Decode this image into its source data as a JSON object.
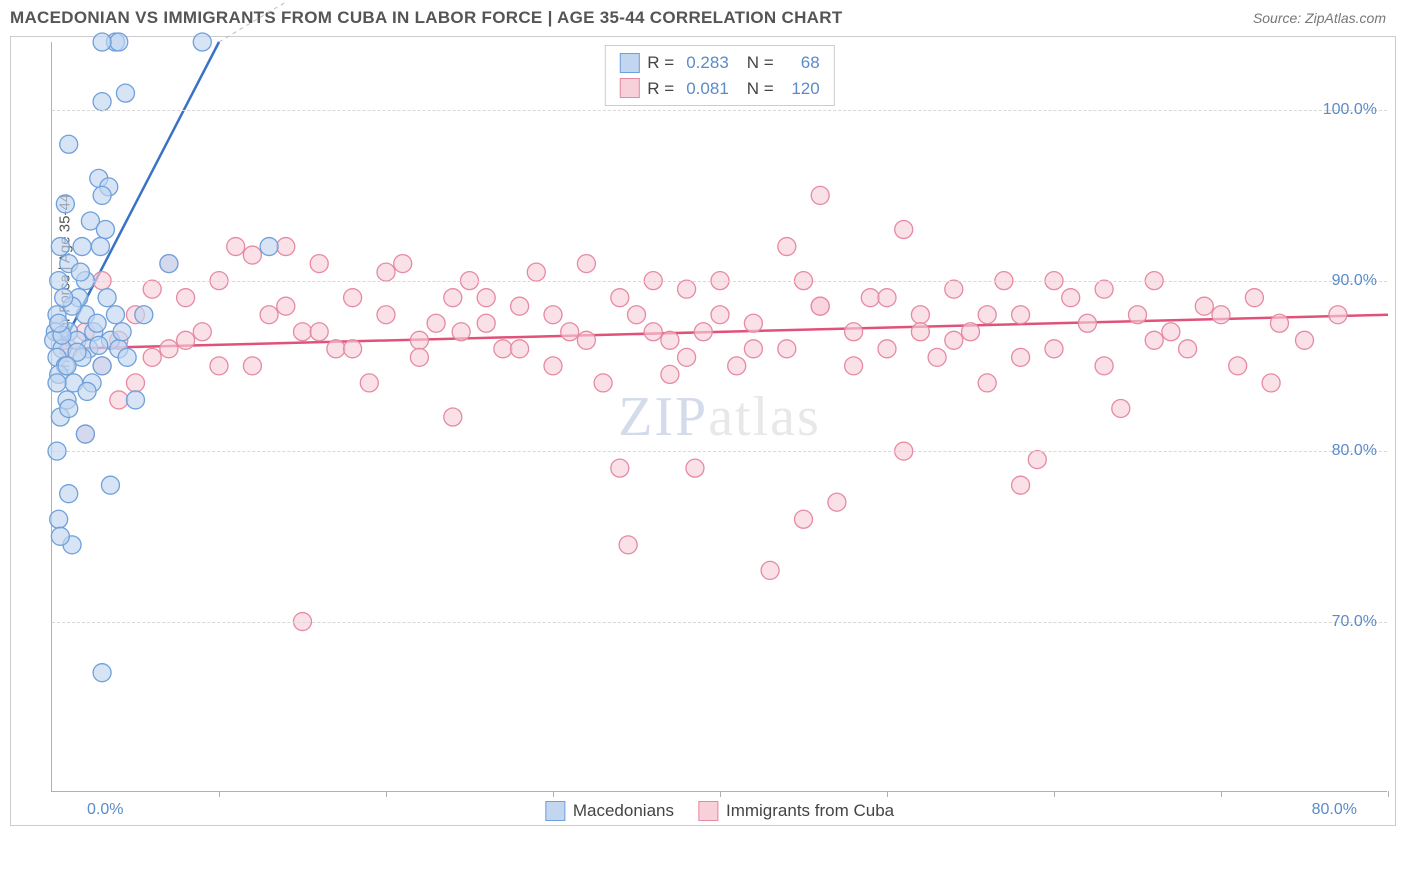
{
  "header": {
    "title": "MACEDONIAN VS IMMIGRANTS FROM CUBA IN LABOR FORCE | AGE 35-44 CORRELATION CHART",
    "source": "Source: ZipAtlas.com"
  },
  "chart": {
    "type": "scatter",
    "y_axis_label": "In Labor Force | Age 35-44",
    "x_origin_label": "0.0%",
    "x_end_label": "80.0%",
    "xlim": [
      0,
      80
    ],
    "ylim": [
      60,
      104
    ],
    "y_ticks": [
      70,
      80,
      90,
      100
    ],
    "y_tick_labels": [
      "70.0%",
      "80.0%",
      "90.0%",
      "100.0%"
    ],
    "x_ticks": [
      10,
      20,
      30,
      40,
      50,
      60,
      70,
      80
    ],
    "grid_color": "#d8d8d8",
    "background_color": "#ffffff",
    "plot_border_color": "#b0b0b0",
    "series": [
      {
        "name": "Macedonians",
        "marker_fill": "#c2d6ef",
        "marker_stroke": "#6ea0db",
        "marker_radius": 9,
        "trend_line_color": "#3a72c4",
        "trend_line_width": 2.5,
        "trend_start": [
          0.5,
          86
        ],
        "trend_end": [
          10,
          104
        ],
        "extrapolate_color": "#bbbbbb",
        "extrapolate_dash": "4,4",
        "extrapolate_end": [
          19,
          104
        ],
        "points": [
          [
            3.8,
            104
          ],
          [
            4.0,
            104
          ],
          [
            3.0,
            104
          ],
          [
            9.0,
            104
          ],
          [
            3.0,
            100.5
          ],
          [
            4.4,
            101
          ],
          [
            1.0,
            98
          ],
          [
            2.8,
            96
          ],
          [
            3.4,
            95.5
          ],
          [
            0.8,
            94.5
          ],
          [
            3.0,
            95
          ],
          [
            2.3,
            93.5
          ],
          [
            3.2,
            93
          ],
          [
            0.5,
            92
          ],
          [
            1.8,
            92
          ],
          [
            2.9,
            92
          ],
          [
            1.0,
            91
          ],
          [
            7.0,
            91
          ],
          [
            0.4,
            90
          ],
          [
            1.6,
            89
          ],
          [
            0.3,
            88
          ],
          [
            2.0,
            88
          ],
          [
            13.0,
            92
          ],
          [
            0.2,
            87
          ],
          [
            1.0,
            87
          ],
          [
            2.5,
            87
          ],
          [
            0.1,
            86.5
          ],
          [
            1.5,
            86.5
          ],
          [
            3.5,
            86.5
          ],
          [
            0.6,
            86
          ],
          [
            2.2,
            86
          ],
          [
            4.0,
            86
          ],
          [
            0.3,
            85.5
          ],
          [
            1.8,
            85.5
          ],
          [
            0.8,
            85
          ],
          [
            3.0,
            85
          ],
          [
            0.4,
            84.5
          ],
          [
            2.4,
            84
          ],
          [
            0.9,
            83
          ],
          [
            5.0,
            83
          ],
          [
            0.5,
            82
          ],
          [
            2.0,
            81
          ],
          [
            0.3,
            80
          ],
          [
            3.5,
            78
          ],
          [
            1.0,
            77.5
          ],
          [
            0.4,
            76
          ],
          [
            1.2,
            74.5
          ],
          [
            0.5,
            75
          ],
          [
            3.0,
            67
          ],
          [
            1.5,
            85.8
          ],
          [
            2.8,
            86.2
          ],
          [
            4.2,
            87
          ],
          [
            1.2,
            88.5
          ],
          [
            0.7,
            89
          ],
          [
            3.8,
            88
          ],
          [
            2.0,
            90
          ],
          [
            0.9,
            85
          ],
          [
            4.5,
            85.5
          ],
          [
            1.3,
            84
          ],
          [
            0.6,
            86.8
          ],
          [
            2.7,
            87.5
          ],
          [
            3.3,
            89
          ],
          [
            1.7,
            90.5
          ],
          [
            5.5,
            88
          ],
          [
            0.4,
            87.5
          ],
          [
            2.1,
            83.5
          ],
          [
            1.0,
            82.5
          ],
          [
            0.3,
            84
          ]
        ]
      },
      {
        "name": "Immigrants from Cuba",
        "marker_fill": "#f7d0da",
        "marker_stroke": "#e68aa3",
        "marker_radius": 9,
        "trend_line_color": "#e0527a",
        "trend_line_width": 2.5,
        "trend_start": [
          0.5,
          86
        ],
        "trend_end": [
          80,
          88
        ],
        "points": [
          [
            1,
            86
          ],
          [
            2,
            87
          ],
          [
            3,
            85
          ],
          [
            4,
            86.5
          ],
          [
            5,
            88
          ],
          [
            6,
            85.5
          ],
          [
            7,
            86
          ],
          [
            8,
            89
          ],
          [
            9,
            87
          ],
          [
            10,
            85
          ],
          [
            3,
            90
          ],
          [
            5,
            84
          ],
          [
            7,
            91
          ],
          [
            11,
            92
          ],
          [
            12,
            91.5
          ],
          [
            13,
            88
          ],
          [
            14,
            92
          ],
          [
            15,
            87
          ],
          [
            16,
            91
          ],
          [
            17,
            86
          ],
          [
            18,
            89
          ],
          [
            19,
            84
          ],
          [
            20,
            88
          ],
          [
            21,
            91
          ],
          [
            22,
            86.5
          ],
          [
            23,
            87.5
          ],
          [
            24,
            82
          ],
          [
            25,
            90
          ],
          [
            26,
            89
          ],
          [
            27,
            86
          ],
          [
            28,
            88.5
          ],
          [
            29,
            90.5
          ],
          [
            30,
            85
          ],
          [
            31,
            87
          ],
          [
            32,
            91
          ],
          [
            33,
            84
          ],
          [
            15,
            70
          ],
          [
            34,
            79
          ],
          [
            35,
            88
          ],
          [
            36,
            90
          ],
          [
            37,
            86.5
          ],
          [
            38,
            89.5
          ],
          [
            34.5,
            74.5
          ],
          [
            38.5,
            79
          ],
          [
            37,
            84.5
          ],
          [
            39,
            87
          ],
          [
            40,
            88
          ],
          [
            41,
            85
          ],
          [
            42,
            86
          ],
          [
            43,
            73
          ],
          [
            44,
            92
          ],
          [
            46,
            95
          ],
          [
            45,
            90
          ],
          [
            46,
            88.5
          ],
          [
            47,
            77
          ],
          [
            48,
            87
          ],
          [
            49,
            89
          ],
          [
            50,
            86
          ],
          [
            51,
            80
          ],
          [
            52,
            88
          ],
          [
            53,
            85.5
          ],
          [
            54,
            89.5
          ],
          [
            55,
            87
          ],
          [
            56,
            84
          ],
          [
            57,
            90
          ],
          [
            58,
            88
          ],
          [
            59,
            79.5
          ],
          [
            60,
            86
          ],
          [
            61,
            89
          ],
          [
            62,
            87.5
          ],
          [
            63,
            85
          ],
          [
            64,
            82.5
          ],
          [
            65,
            88
          ],
          [
            66,
            90
          ],
          [
            67,
            87
          ],
          [
            68,
            86
          ],
          [
            69,
            88.5
          ],
          [
            70,
            88
          ],
          [
            71,
            85
          ],
          [
            72,
            89
          ],
          [
            73,
            84
          ],
          [
            73.5,
            87.5
          ],
          [
            75,
            86.5
          ],
          [
            77,
            88
          ],
          [
            2,
            81
          ],
          [
            4,
            83
          ],
          [
            6,
            89.5
          ],
          [
            8,
            86.5
          ],
          [
            10,
            90
          ],
          [
            12,
            85
          ],
          [
            14,
            88.5
          ],
          [
            16,
            87
          ],
          [
            18,
            86
          ],
          [
            20,
            90.5
          ],
          [
            22,
            85.5
          ],
          [
            24,
            89
          ],
          [
            26,
            87.5
          ],
          [
            28,
            86
          ],
          [
            30,
            88
          ],
          [
            32,
            86.5
          ],
          [
            34,
            89
          ],
          [
            36,
            87
          ],
          [
            38,
            85.5
          ],
          [
            40,
            90
          ],
          [
            42,
            87.5
          ],
          [
            44,
            86
          ],
          [
            46,
            88.5
          ],
          [
            48,
            85
          ],
          [
            50,
            89
          ],
          [
            52,
            87
          ],
          [
            54,
            86.5
          ],
          [
            56,
            88
          ],
          [
            58,
            85.5
          ],
          [
            60,
            90
          ],
          [
            45,
            76
          ],
          [
            51,
            93
          ],
          [
            58,
            78
          ],
          [
            63,
            89.5
          ],
          [
            66,
            86.5
          ],
          [
            24.5,
            87
          ]
        ]
      }
    ],
    "stats_box": {
      "rows": [
        {
          "swatch_fill": "#c2d6ef",
          "swatch_stroke": "#6ea0db",
          "r_label": "R =",
          "r_value": "0.283",
          "n_label": "N =",
          "n_value": "68"
        },
        {
          "swatch_fill": "#f7d0da",
          "swatch_stroke": "#e68aa3",
          "r_label": "R =",
          "r_value": "0.081",
          "n_label": "N =",
          "n_value": "120"
        }
      ]
    },
    "bottom_legend": [
      {
        "swatch_fill": "#c2d6ef",
        "swatch_stroke": "#6ea0db",
        "label": "Macedonians"
      },
      {
        "swatch_fill": "#f7d0da",
        "swatch_stroke": "#e68aa3",
        "label": "Immigrants from Cuba"
      }
    ],
    "watermark": {
      "first": "ZIP",
      "rest": "atlas"
    }
  }
}
